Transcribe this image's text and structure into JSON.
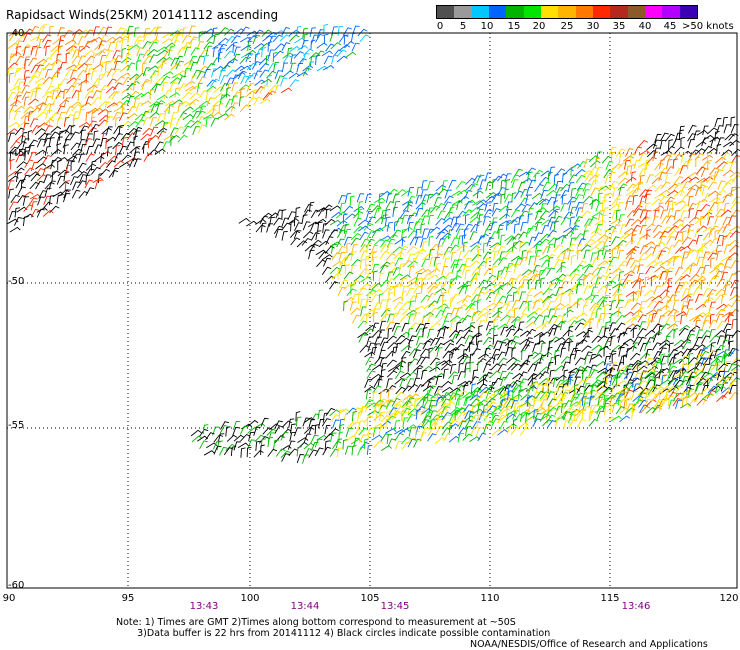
{
  "title": "Rapidsact Winds(25KM) 20141112 ascending",
  "legend": {
    "labels": [
      "0",
      "5",
      "10",
      "15",
      "20",
      "25",
      "30",
      "35",
      "40",
      "45",
      ">50 knots"
    ],
    "colors": [
      "#505050",
      "#9a9a9a",
      "#00c8ff",
      "#0064ff",
      "#00b400",
      "#00e600",
      "#ffe000",
      "#ffb400",
      "#ff7800",
      "#ff2800",
      "#b4281e",
      "#8c5a28",
      "#ff00ff",
      "#b400ff",
      "#3c00b4"
    ]
  },
  "axes": {
    "y_labels": [
      "-40",
      "-45",
      "-50",
      "-55",
      "-60"
    ],
    "x_labels": [
      "90",
      "95",
      "100",
      "105",
      "110",
      "115",
      "120"
    ],
    "lat_range": [
      -60,
      -40
    ],
    "lon_range": [
      90,
      120
    ]
  },
  "time_labels": [
    "13:43",
    "13:44",
    "13:45",
    "13:46"
  ],
  "notes": "Note: 1) Times are GMT 2)Times along bottom correspond to measurement at ~50S\n       3)Data buffer is 22 hrs from 20141112 4) Black circles indicate possible contamination",
  "credit": "NOAA/NESDIS/Office of Research and Applications"
}
